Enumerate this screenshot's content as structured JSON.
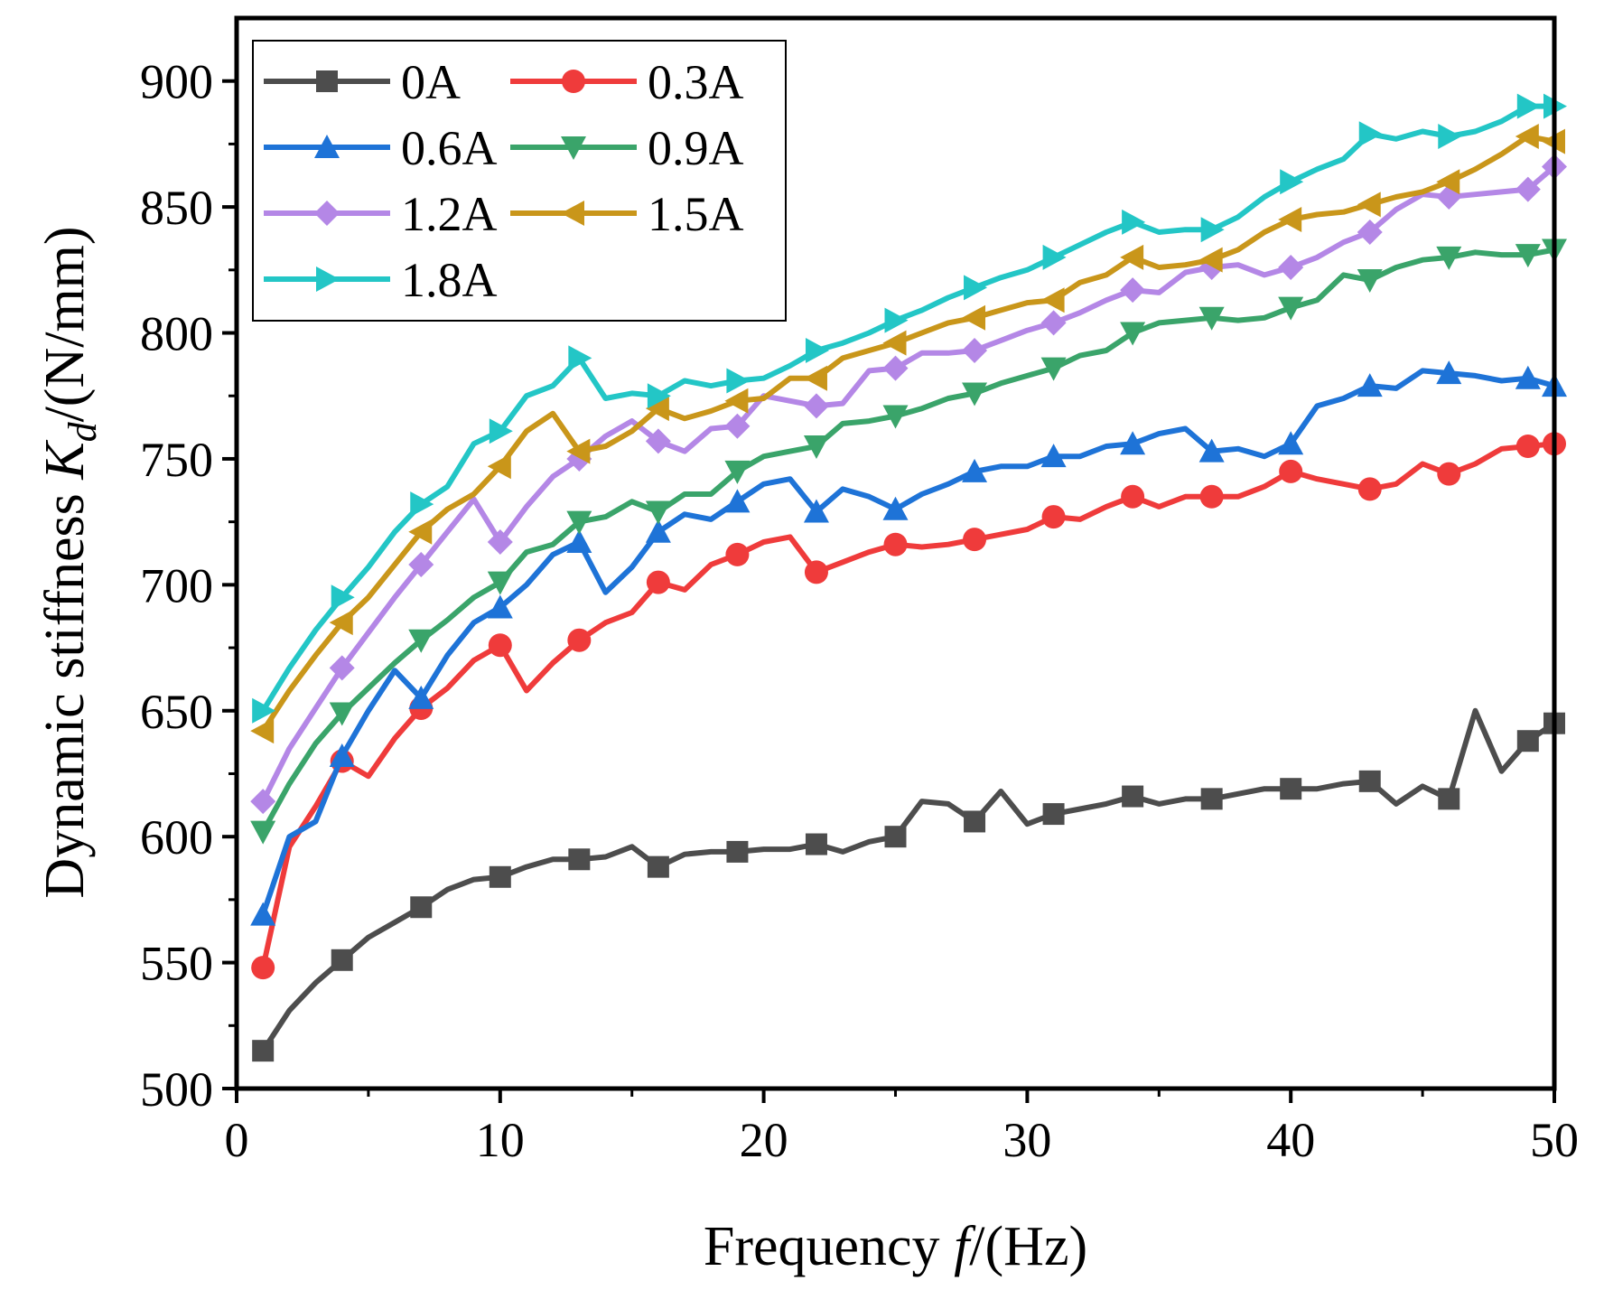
{
  "chart_data": {
    "type": "line",
    "title": "",
    "xlabel_prefix": "Frequency ",
    "xlabel_var": "f",
    "xlabel_suffix": "/(Hz)",
    "ylabel_prefix": "Dynamic stiffness ",
    "ylabel_var": "K",
    "ylabel_sub": "d",
    "ylabel_suffix": "/(N/mm)",
    "xlim": [
      0,
      50
    ],
    "ylim": [
      500,
      925
    ],
    "xticks": [
      0,
      10,
      20,
      30,
      40,
      50
    ],
    "yticks": [
      500,
      550,
      600,
      650,
      700,
      750,
      800,
      850,
      900
    ],
    "legend_position": "top-left",
    "x": [
      1,
      2,
      3,
      4,
      5,
      6,
      7,
      8,
      9,
      10,
      11,
      12,
      13,
      14,
      15,
      16,
      17,
      18,
      19,
      20,
      21,
      22,
      23,
      24,
      25,
      26,
      27,
      28,
      29,
      30,
      31,
      32,
      33,
      34,
      35,
      36,
      37,
      38,
      39,
      40,
      41,
      42,
      43,
      44,
      45,
      46,
      47,
      48,
      49,
      50
    ],
    "series": [
      {
        "name": "0A",
        "color": "#4d4d4d",
        "marker": "square",
        "marker_every": 3,
        "values": [
          515,
          531,
          542,
          551,
          560,
          566,
          572,
          579,
          583,
          584,
          588,
          591,
          591,
          592,
          596,
          588,
          593,
          594,
          594,
          595,
          595,
          597,
          594,
          598,
          600,
          614,
          613,
          606,
          618,
          605,
          609,
          611,
          613,
          616,
          613,
          615,
          615,
          617,
          619,
          619,
          619,
          621,
          622,
          613,
          620,
          615,
          650,
          626,
          638,
          645
        ]
      },
      {
        "name": "0.3A",
        "color": "#ef3b3b",
        "marker": "circle",
        "marker_every": 3,
        "values": [
          548,
          596,
          612,
          630,
          624,
          639,
          651,
          659,
          670,
          676,
          658,
          669,
          678,
          685,
          689,
          701,
          698,
          708,
          712,
          717,
          719,
          705,
          709,
          713,
          716,
          715,
          716,
          718,
          720,
          722,
          727,
          726,
          731,
          735,
          731,
          735,
          735,
          735,
          739,
          745,
          742,
          740,
          738,
          740,
          748,
          744,
          748,
          754,
          755,
          756
        ]
      },
      {
        "name": "0.6A",
        "color": "#1e73d7",
        "marker": "triangle-up",
        "marker_every": 3,
        "values": [
          569,
          600,
          606,
          632,
          650,
          666,
          655,
          672,
          685,
          691,
          700,
          712,
          717,
          697,
          707,
          721,
          728,
          726,
          733,
          740,
          742,
          729,
          738,
          735,
          730,
          736,
          740,
          745,
          747,
          747,
          751,
          751,
          755,
          756,
          760,
          762,
          753,
          754,
          751,
          756,
          771,
          774,
          779,
          778,
          785,
          784,
          783,
          781,
          782,
          779
        ]
      },
      {
        "name": "0.9A",
        "color": "#3aa46a",
        "marker": "triangle-down",
        "marker_every": 3,
        "values": [
          602,
          621,
          637,
          649,
          659,
          669,
          678,
          686,
          695,
          701,
          713,
          716,
          725,
          727,
          733,
          729,
          736,
          736,
          745,
          751,
          753,
          755,
          764,
          765,
          767,
          770,
          774,
          776,
          780,
          783,
          786,
          791,
          793,
          800,
          804,
          805,
          806,
          805,
          806,
          810,
          813,
          823,
          821,
          826,
          829,
          830,
          832,
          831,
          831,
          833
        ]
      },
      {
        "name": "1.2A",
        "color": "#b487e6",
        "marker": "diamond",
        "marker_every": 3,
        "values": [
          614,
          635,
          651,
          667,
          681,
          695,
          708,
          721,
          734,
          717,
          731,
          743,
          750,
          759,
          765,
          757,
          753,
          762,
          763,
          775,
          773,
          771,
          772,
          785,
          786,
          792,
          792,
          793,
          797,
          801,
          804,
          808,
          813,
          817,
          816,
          824,
          826,
          827,
          823,
          826,
          830,
          836,
          840,
          849,
          855,
          854,
          855,
          856,
          857,
          866
        ]
      },
      {
        "name": "1.5A",
        "color": "#c9961a",
        "marker": "triangle-left",
        "marker_every": 3,
        "values": [
          642,
          658,
          672,
          685,
          695,
          708,
          721,
          730,
          736,
          747,
          761,
          768,
          753,
          755,
          761,
          770,
          766,
          769,
          773,
          774,
          782,
          782,
          790,
          793,
          796,
          800,
          804,
          806,
          809,
          812,
          813,
          820,
          823,
          830,
          826,
          827,
          829,
          833,
          840,
          845,
          847,
          848,
          851,
          854,
          856,
          860,
          865,
          871,
          878,
          876
        ]
      },
      {
        "name": "1.8A",
        "color": "#23c6c6",
        "marker": "triangle-right",
        "marker_every": 3,
        "values": [
          650,
          667,
          682,
          695,
          707,
          721,
          732,
          739,
          756,
          761,
          775,
          779,
          790,
          774,
          776,
          775,
          781,
          779,
          781,
          782,
          787,
          793,
          796,
          800,
          805,
          809,
          814,
          818,
          822,
          825,
          830,
          835,
          840,
          844,
          840,
          841,
          841,
          846,
          854,
          860,
          865,
          869,
          879,
          877,
          880,
          878,
          880,
          884,
          890,
          890
        ]
      }
    ]
  }
}
